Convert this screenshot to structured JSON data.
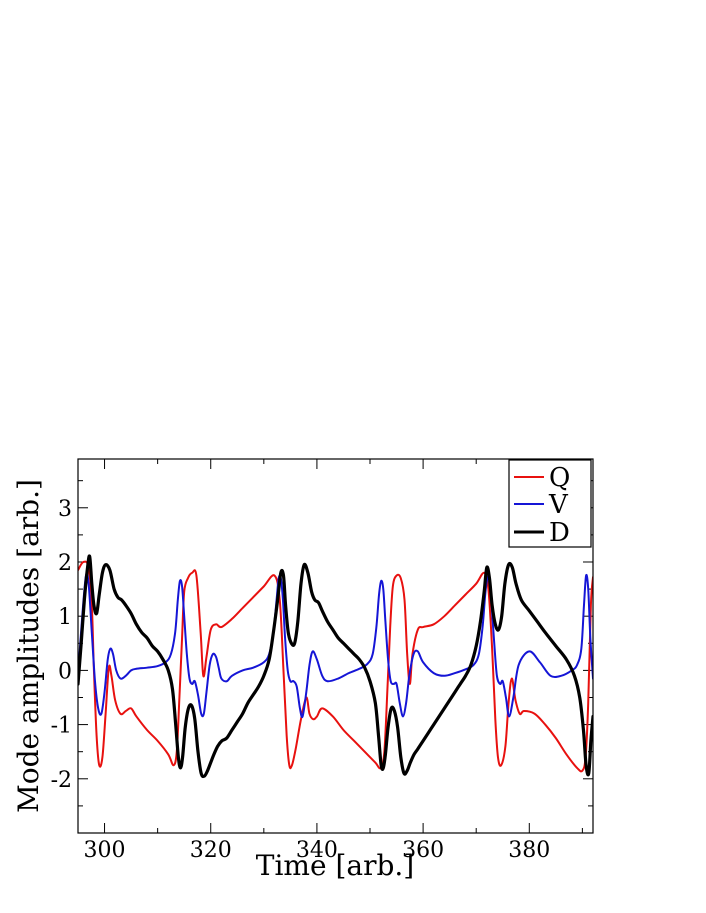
{
  "chart_data": {
    "type": "line",
    "title": "",
    "xlabel": "Time [arb.]",
    "ylabel": "Mode amplitudes [arb.]",
    "xlim": [
      295,
      392
    ],
    "ylim": [
      -3,
      3.9
    ],
    "xticks": [
      300,
      320,
      340,
      360,
      380
    ],
    "xtick_labels": [
      "300",
      "320",
      "340",
      "360",
      "380"
    ],
    "yticks": [
      3,
      2,
      1,
      0,
      -1,
      -2
    ],
    "ytick_labels": [
      "3",
      "2",
      "1",
      "0",
      "-1",
      "-2"
    ],
    "grid": false,
    "legend": "top-right",
    "series": [
      {
        "name": "Q",
        "color": "#e8110f",
        "x": [
          295,
          296,
          297,
          297.6,
          298,
          298.5,
          299,
          299.6,
          300.2,
          300.8,
          301.3,
          302,
          303,
          304,
          305,
          306,
          308,
          310,
          312,
          313,
          313.6,
          314.1,
          314.6,
          315,
          315.7,
          316.5,
          317.3,
          318.1,
          318.6,
          319.2,
          320,
          321,
          322,
          324,
          326,
          328,
          330,
          332,
          333,
          333.7,
          334.3,
          334.8,
          335.3,
          336,
          337,
          338,
          338.6,
          339.3,
          340,
          341,
          343,
          345,
          347,
          349,
          351,
          352,
          352.7,
          353.3,
          353.8,
          354.3,
          355,
          355.8,
          356.5,
          357,
          357.5,
          358,
          359,
          360,
          362,
          364,
          366,
          368,
          370,
          371.5,
          372.3,
          373,
          373.6,
          374.1,
          374.7,
          375.5,
          376.1,
          376.7,
          377.4,
          378.2,
          379,
          381,
          383,
          385,
          387,
          389,
          390,
          390.6,
          391.1,
          391.6,
          392
        ],
        "y": [
          1.85,
          2.0,
          1.9,
          1.2,
          0.0,
          -1.2,
          -1.75,
          -1.6,
          -0.8,
          0.05,
          -0.1,
          -0.55,
          -0.8,
          -0.75,
          -0.7,
          -0.85,
          -1.1,
          -1.3,
          -1.55,
          -1.75,
          -1.5,
          -0.5,
          0.6,
          1.45,
          1.7,
          1.8,
          1.75,
          0.7,
          -0.1,
          0.25,
          0.75,
          0.85,
          0.8,
          0.95,
          1.15,
          1.35,
          1.55,
          1.75,
          1.3,
          0.0,
          -1.2,
          -1.75,
          -1.75,
          -1.45,
          -0.9,
          -0.5,
          -0.8,
          -0.9,
          -0.85,
          -0.7,
          -0.85,
          -1.1,
          -1.3,
          -1.5,
          -1.7,
          -1.8,
          -1.5,
          -0.3,
          0.8,
          1.55,
          1.75,
          1.7,
          1.3,
          0.3,
          -0.25,
          0.3,
          0.75,
          0.8,
          0.85,
          1.0,
          1.2,
          1.4,
          1.6,
          1.8,
          1.5,
          0.4,
          -0.9,
          -1.6,
          -1.75,
          -1.4,
          -0.6,
          -0.15,
          -0.55,
          -0.8,
          -0.75,
          -0.8,
          -1.0,
          -1.25,
          -1.55,
          -1.8,
          -1.85,
          -1.6,
          -0.6,
          1.2,
          1.72
        ]
      },
      {
        "name": "V",
        "color": "#1515d6",
        "x": [
          295,
          295.8,
          296.5,
          297,
          297.6,
          298.2,
          298.8,
          299.4,
          300,
          300.6,
          301.1,
          301.6,
          302.2,
          303,
          304,
          305,
          306,
          308,
          310,
          311.5,
          312.5,
          313.3,
          313.8,
          314.2,
          314.6,
          315,
          315.5,
          316,
          316.5,
          317,
          317.6,
          318.2,
          318.7,
          319.2,
          319.8,
          320.4,
          321,
          321.5,
          322,
          323,
          324,
          326,
          328,
          330,
          331,
          331.8,
          332.4,
          332.8,
          333.2,
          333.6,
          334,
          334.5,
          335,
          335.6,
          336.2,
          336.8,
          337.3,
          338,
          338.6,
          339.2,
          340,
          341,
          342,
          344,
          346,
          348,
          349.5,
          350.5,
          351.2,
          351.7,
          352.1,
          352.5,
          352.9,
          353.4,
          353.9,
          354.5,
          355,
          355.6,
          356.2,
          356.8,
          357.4,
          358.2,
          359,
          360,
          362,
          364,
          366,
          368,
          369.5,
          370.5,
          371.2,
          371.7,
          372.1,
          372.5,
          372.9,
          373.4,
          373.9,
          374.5,
          375,
          375.6,
          376.2,
          377,
          378,
          380,
          382,
          384,
          386,
          388,
          389,
          389.8,
          390.3,
          390.7,
          391.1,
          391.5,
          392
        ],
        "y": [
          -0.1,
          1.0,
          1.75,
          1.6,
          0.7,
          -0.2,
          -0.7,
          -0.8,
          -0.4,
          0.2,
          0.4,
          0.3,
          0.0,
          -0.15,
          -0.1,
          0.0,
          0.03,
          0.05,
          0.08,
          0.15,
          0.3,
          0.7,
          1.3,
          1.65,
          1.55,
          1.0,
          0.3,
          -0.15,
          -0.25,
          -0.2,
          -0.45,
          -0.8,
          -0.8,
          -0.4,
          0.1,
          0.3,
          0.25,
          0.05,
          -0.15,
          -0.2,
          -0.1,
          0.0,
          0.05,
          0.15,
          0.3,
          0.7,
          1.3,
          1.7,
          1.7,
          1.3,
          0.6,
          0.0,
          -0.2,
          -0.2,
          -0.3,
          -0.7,
          -0.85,
          -0.4,
          0.1,
          0.35,
          0.2,
          -0.1,
          -0.2,
          -0.15,
          -0.05,
          0.03,
          0.12,
          0.3,
          0.8,
          1.4,
          1.65,
          1.5,
          0.9,
          0.2,
          -0.2,
          -0.25,
          -0.25,
          -0.6,
          -0.85,
          -0.6,
          -0.1,
          0.3,
          0.35,
          0.15,
          -0.05,
          -0.1,
          -0.05,
          0.02,
          0.1,
          0.3,
          0.8,
          1.4,
          1.7,
          1.7,
          1.2,
          0.5,
          -0.1,
          -0.25,
          -0.2,
          -0.5,
          -0.85,
          -0.5,
          0.1,
          0.35,
          0.15,
          -0.1,
          -0.1,
          0.0,
          0.1,
          0.4,
          1.2,
          1.75,
          1.5,
          0.6,
          -0.15
        ]
      },
      {
        "name": "D",
        "color": "#000000",
        "x": [
          295,
          295.6,
          296.2,
          296.8,
          297.2,
          297.6,
          298,
          298.5,
          299,
          299.6,
          300.2,
          301,
          301.8,
          302.5,
          303.2,
          304,
          305,
          306,
          307,
          308,
          309,
          310,
          311,
          312,
          312.8,
          313.4,
          313.9,
          314.3,
          314.7,
          315.2,
          315.8,
          316.4,
          317,
          317.6,
          318.2,
          318.8,
          319.4,
          320,
          320.6,
          321.3,
          322.1,
          323,
          324,
          325,
          326,
          327,
          328,
          329,
          330,
          331,
          331.8,
          332.6,
          333.2,
          333.7,
          334.1,
          334.6,
          335.2,
          335.8,
          336.4,
          337,
          337.6,
          338.3,
          339,
          339.6,
          340.3,
          341,
          342,
          343,
          344,
          345,
          346,
          347,
          348,
          349,
          350,
          351,
          351.6,
          352.1,
          352.5,
          352.9,
          353.4,
          354,
          354.6,
          355.2,
          355.8,
          356.4,
          357,
          357.6,
          358.3,
          359,
          360,
          361,
          362,
          363,
          364,
          365,
          366,
          367,
          368,
          369,
          370,
          370.8,
          371.5,
          372,
          372.5,
          373,
          373.6,
          374.2,
          374.8,
          375.4,
          376.1,
          376.8,
          377.5,
          378.5,
          380,
          381.5,
          383,
          385,
          387,
          388.5,
          389.5,
          390.2,
          390.7,
          391.2,
          391.6,
          392
        ],
        "y": [
          -0.25,
          0.5,
          1.3,
          1.9,
          2.1,
          1.6,
          1.2,
          1.05,
          1.4,
          1.8,
          1.95,
          1.85,
          1.5,
          1.35,
          1.3,
          1.2,
          1.05,
          0.85,
          0.7,
          0.6,
          0.45,
          0.35,
          0.2,
          0.0,
          -0.35,
          -1.0,
          -1.6,
          -1.8,
          -1.6,
          -1.05,
          -0.7,
          -0.65,
          -0.9,
          -1.5,
          -1.9,
          -1.95,
          -1.85,
          -1.7,
          -1.55,
          -1.4,
          -1.3,
          -1.25,
          -1.1,
          -0.95,
          -0.8,
          -0.6,
          -0.45,
          -0.3,
          -0.1,
          0.2,
          0.7,
          1.3,
          1.8,
          1.75,
          1.2,
          0.7,
          0.5,
          0.5,
          0.9,
          1.6,
          1.95,
          1.8,
          1.45,
          1.3,
          1.25,
          1.1,
          0.9,
          0.75,
          0.6,
          0.5,
          0.4,
          0.3,
          0.2,
          0.05,
          -0.2,
          -0.6,
          -1.2,
          -1.75,
          -1.8,
          -1.55,
          -1.05,
          -0.7,
          -0.75,
          -1.05,
          -1.6,
          -1.9,
          -1.85,
          -1.7,
          -1.55,
          -1.45,
          -1.3,
          -1.15,
          -1.0,
          -0.85,
          -0.7,
          -0.55,
          -0.4,
          -0.25,
          -0.1,
          0.1,
          0.45,
          0.9,
          1.45,
          1.9,
          1.7,
          1.2,
          0.85,
          0.75,
          1.0,
          1.6,
          1.95,
          1.9,
          1.6,
          1.3,
          1.1,
          0.9,
          0.7,
          0.45,
          0.2,
          -0.1,
          -0.5,
          -1.1,
          -1.75,
          -1.9,
          -1.3,
          -0.85
        ]
      }
    ]
  },
  "legend": {
    "entries": [
      "Q",
      "V",
      "D"
    ]
  }
}
